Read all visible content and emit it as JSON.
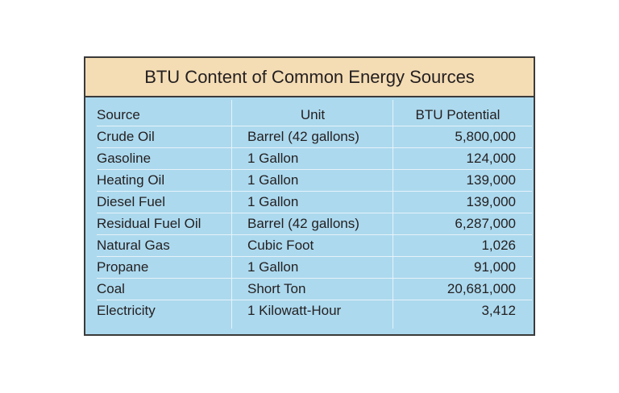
{
  "table": {
    "title": "BTU Content of Common Energy Sources",
    "columns": [
      "Source",
      "Unit",
      "BTU Potential"
    ],
    "rows": [
      [
        "Crude Oil",
        "Barrel (42 gallons)",
        "5,800,000"
      ],
      [
        "Gasoline",
        "1 Gallon",
        "124,000"
      ],
      [
        "Heating Oil",
        "1 Gallon",
        "139,000"
      ],
      [
        "Diesel Fuel",
        "1 Gallon",
        "139,000"
      ],
      [
        "Residual Fuel Oil",
        "Barrel (42 gallons)",
        "6,287,000"
      ],
      [
        "Natural Gas",
        "Cubic Foot",
        "1,026"
      ],
      [
        "Propane",
        "1 Gallon",
        "91,000"
      ],
      [
        "Coal",
        "Short Ton",
        "20,681,000"
      ],
      [
        "Electricity",
        "1 Kilowatt-Hour",
        "3,412"
      ]
    ]
  }
}
